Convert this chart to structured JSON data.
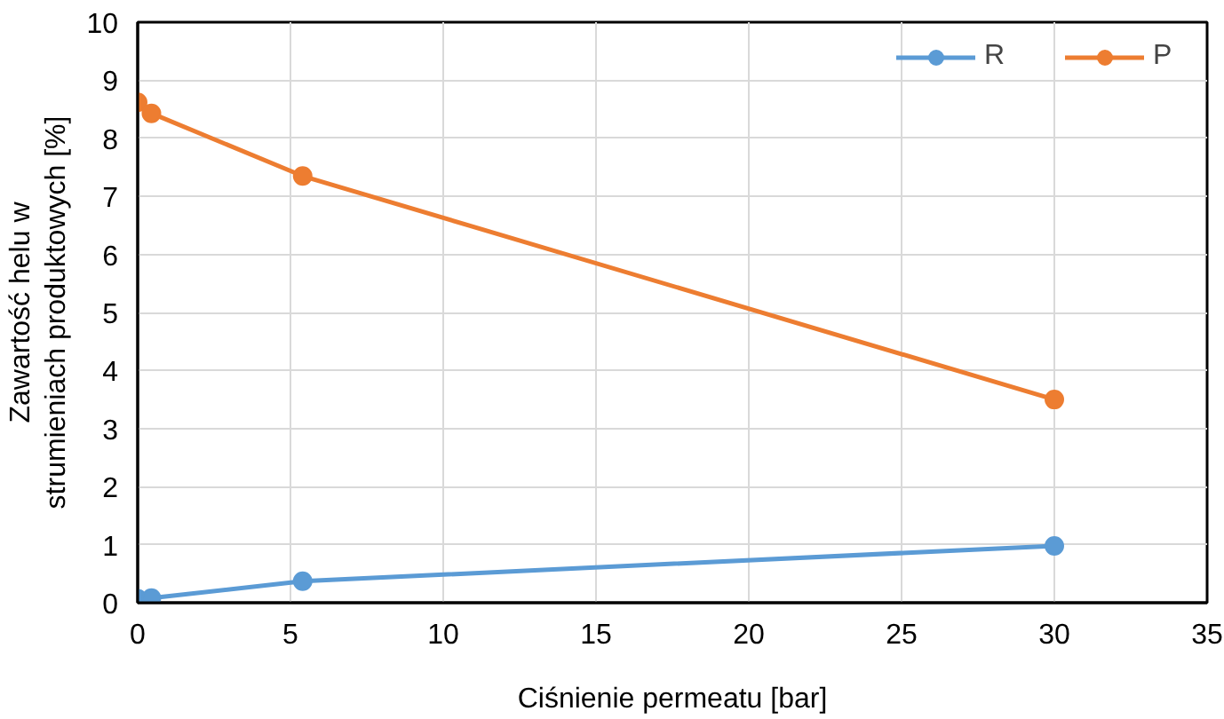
{
  "chart_data": {
    "type": "line",
    "xlabel": "Ciśnienie permeatu [bar]",
    "ylabel": "Zawartość helu w strumieniach produktowych [%]",
    "x": [
      0,
      0.45,
      5.4,
      30
    ],
    "series": [
      {
        "name": "R",
        "color": "#5b9bd5",
        "values": [
          0.07,
          0.08,
          0.37,
          0.98
        ]
      },
      {
        "name": "P",
        "color": "#ed7d31",
        "values": [
          8.62,
          8.43,
          7.35,
          3.5
        ]
      }
    ],
    "xlim": [
      0,
      35
    ],
    "xticks": [
      0,
      5,
      10,
      15,
      20,
      25,
      30,
      35
    ],
    "ylim": [
      0,
      10
    ],
    "yticks": [
      0,
      1,
      2,
      3,
      4,
      5,
      6,
      7,
      8,
      9,
      10
    ],
    "grid": true,
    "legend": "top right",
    "marker": "circle",
    "line_style": "solid"
  }
}
